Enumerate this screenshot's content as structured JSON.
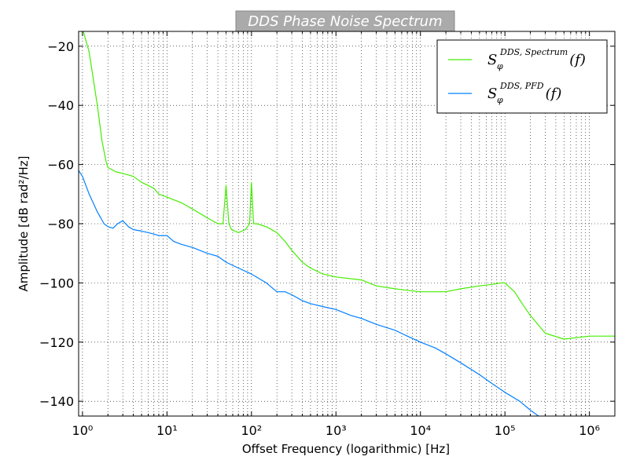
{
  "chart_data": {
    "type": "line",
    "title": "DDS Phase Noise Spectrum",
    "xlabel": "Offset Frequency (logarithmic) [Hz]",
    "ylabel": "Amplitude [dB rad²/Hz]",
    "x_scale": "log",
    "xlim": [
      0.9,
      2000000
    ],
    "ylim": [
      -145,
      -15
    ],
    "grid": "dotted",
    "legend_position": "top-right",
    "x_ticks": [
      1,
      10,
      100,
      1000,
      10000,
      100000,
      1000000
    ],
    "x_tick_labels": [
      "10⁰",
      "10¹",
      "10²",
      "10³",
      "10⁴",
      "10⁵",
      "10⁶"
    ],
    "y_ticks": [
      -140,
      -120,
      -100,
      -80,
      -60,
      -40,
      -20
    ],
    "y_tick_labels": [
      "−140",
      "−120",
      "−100",
      "−80",
      "−60",
      "−40",
      "−20"
    ],
    "series": [
      {
        "name": "S_φ^{DDS, Spectrum}(f)",
        "legend_base": "S",
        "legend_sup": "DDS, Spectrum",
        "legend_sub": "φ",
        "legend_arg": "(f)",
        "color": "#44ee00",
        "x": [
          1.0,
          1.2,
          1.5,
          1.7,
          1.9,
          2.0,
          2.5,
          3,
          4,
          5,
          7,
          8,
          10,
          15,
          20,
          30,
          40,
          46,
          50,
          54,
          58,
          70,
          85,
          95,
          100,
          106,
          115,
          150,
          200,
          250,
          300,
          400,
          500,
          700,
          1000,
          2000,
          3000,
          5000,
          7000,
          10000,
          20000,
          30000,
          50000,
          70000,
          90000,
          100000,
          130000,
          160000,
          200000,
          300000,
          500000,
          1000000,
          2000000
        ],
        "y": [
          -14,
          -22,
          -40,
          -52,
          -59,
          -61,
          -62.5,
          -63,
          -64,
          -66,
          -68,
          -70,
          -71,
          -73,
          -75,
          -78,
          -80,
          -80,
          -67,
          -80,
          -82,
          -83,
          -82,
          -80,
          -66,
          -80,
          -80,
          -81,
          -83,
          -86,
          -89,
          -93,
          -95,
          -97,
          -98,
          -99,
          -101,
          -102,
          -102.5,
          -103,
          -103,
          -102,
          -101,
          -100.5,
          -100,
          -100,
          -103,
          -107,
          -111,
          -117,
          -119,
          -118,
          -118
        ]
      },
      {
        "name": "S_φ^{DDS, PFD}(f)",
        "legend_base": "S",
        "legend_sup": "DDS, PFD",
        "legend_sub": "φ",
        "legend_arg": "(f)",
        "color": "#0080ff",
        "x": [
          0.9,
          1.0,
          1.2,
          1.5,
          1.8,
          2.0,
          2.3,
          2.6,
          3.0,
          3.5,
          4,
          5,
          6,
          7,
          8,
          10,
          12,
          15,
          20,
          30,
          40,
          50,
          70,
          100,
          150,
          200,
          250,
          300,
          400,
          500,
          700,
          1000,
          1500,
          2000,
          3000,
          5000,
          7000,
          10000,
          15000,
          20000,
          30000,
          50000,
          70000,
          100000,
          150000,
          200000,
          250000
        ],
        "y": [
          -62,
          -64,
          -70,
          -76,
          -80,
          -81,
          -81.5,
          -80,
          -79,
          -81,
          -82,
          -82.5,
          -83,
          -83.5,
          -84,
          -84,
          -86,
          -87,
          -88,
          -90,
          -91,
          -93,
          -95,
          -97,
          -100,
          -103,
          -103,
          -104,
          -106,
          -107,
          -108,
          -109,
          -111,
          -112,
          -114,
          -116,
          -118,
          -120,
          -122,
          -124,
          -127,
          -131,
          -134,
          -137,
          -140,
          -143,
          -145
        ]
      }
    ]
  }
}
